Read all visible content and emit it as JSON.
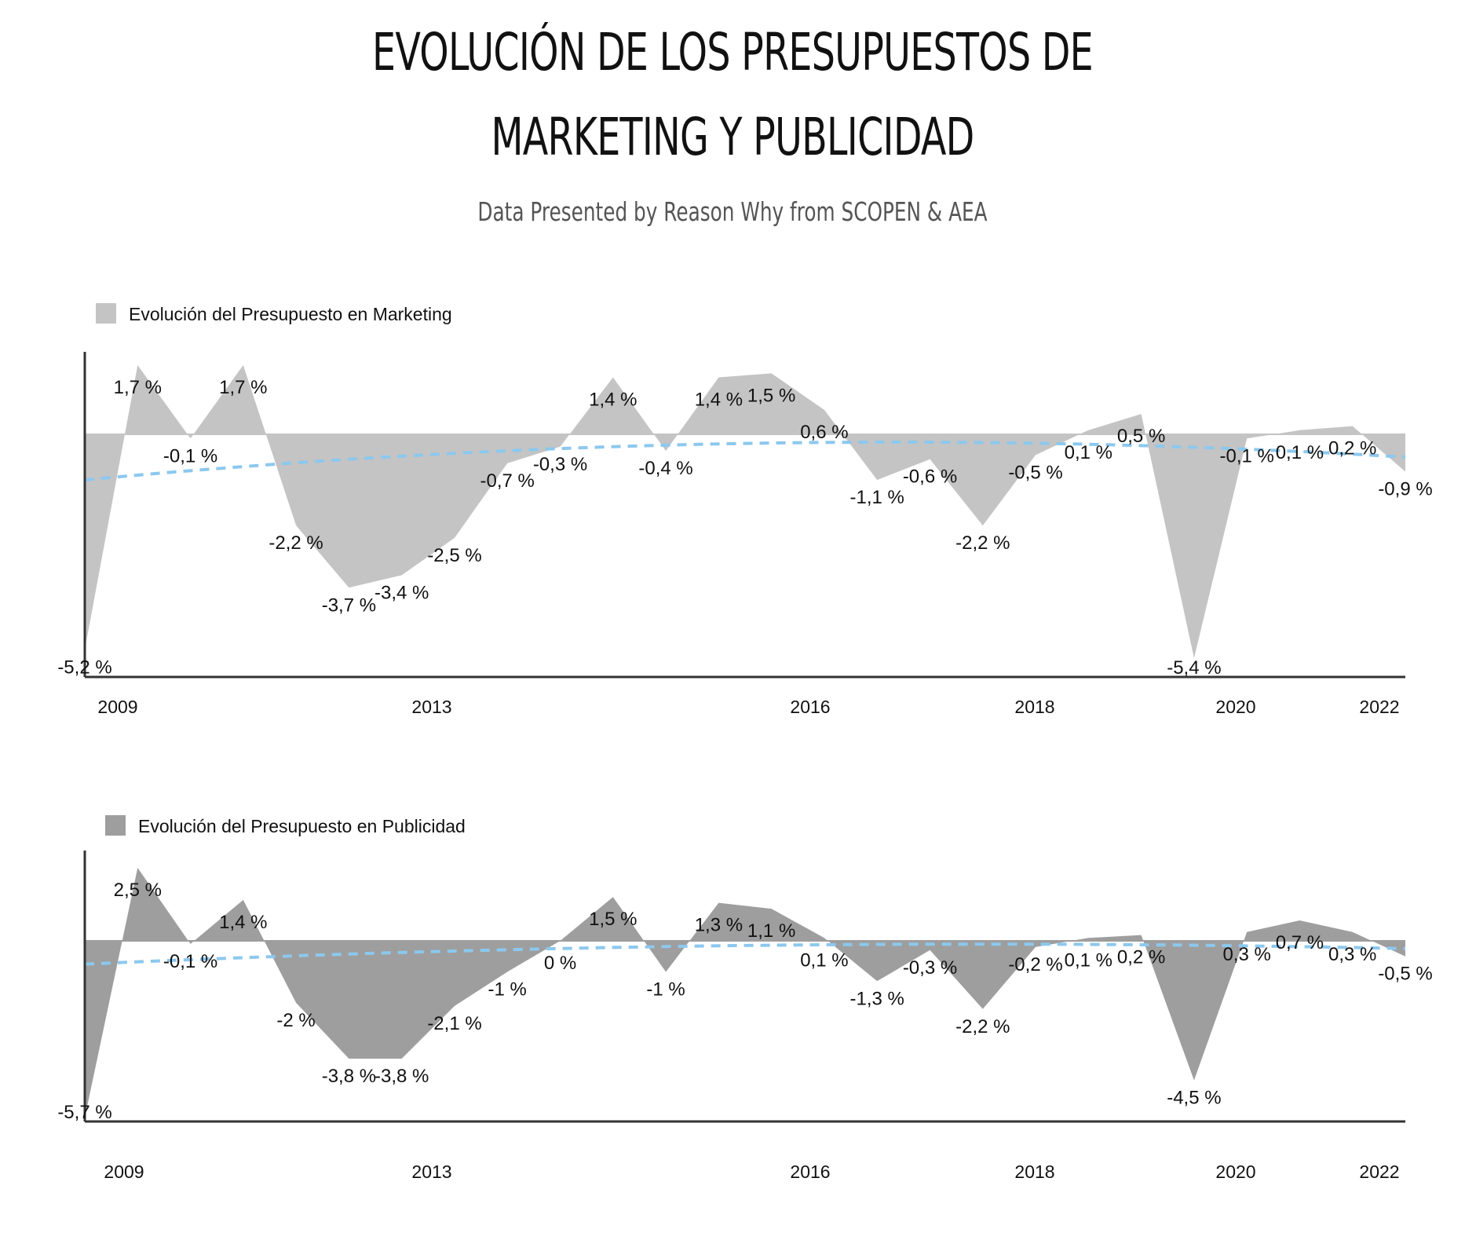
{
  "title_line1": "EVOLUCIÓN DE LOS PRESUPUESTOS DE",
  "title_line2": "MARKETING Y PUBLICIDAD",
  "subtitle": "Data Presented by Reason Why from SCOPEN & AEA",
  "colors": {
    "marketing_fill": "#c4c4c4",
    "publicidad_fill": "#9e9e9e",
    "trend": "#8cc8ee",
    "axis": "#333333"
  },
  "chart_data": [
    {
      "type": "area",
      "legend": "Evolución del Presupuesto en Marketing",
      "legend_placement": "top-left",
      "grid": false,
      "trendline": "dashed-polynomial",
      "ylim": [
        -5.4,
        1.7
      ],
      "x_ticks": [
        "2009",
        "2013",
        "2016",
        "2018",
        "2020",
        "2022"
      ],
      "values": [
        -5.2,
        1.7,
        -0.1,
        1.7,
        -2.2,
        -3.7,
        -3.4,
        -2.5,
        -0.7,
        -0.3,
        1.4,
        -0.4,
        1.4,
        1.5,
        0.6,
        -1.1,
        -0.6,
        -2.2,
        -0.5,
        0.1,
        0.5,
        -5.4,
        -0.1,
        0.1,
        0.2,
        -0.9
      ],
      "labels": [
        "-5,2 %",
        "1,7 %",
        "-0,1 %",
        "1,7 %",
        "-2,2 %",
        "-3,7 %",
        "-3,4 %",
        "-2,5 %",
        "-0,7 %",
        "-0,3 %",
        "1,4 %",
        "-0,4 %",
        "1,4 %",
        "1,5 %",
        "0,6 %",
        "-1,1 %",
        "-0,6 %",
        "-2,2 %",
        "-0,5 %",
        "0,1 %",
        "0,5 %",
        "-5,4 %",
        "-0,1 %",
        "0,1 %",
        "0,2 %",
        "-0,9 %"
      ]
    },
    {
      "type": "area",
      "legend": "Evolución del Presupuesto en Publicidad",
      "legend_placement": "top-left",
      "grid": false,
      "trendline": "dashed-polynomial",
      "ylim": [
        -5.7,
        2.5
      ],
      "x_ticks": [
        "2009",
        "2013",
        "2016",
        "2018",
        "2020",
        "2022"
      ],
      "values": [
        -5.7,
        2.5,
        -0.1,
        1.4,
        -2,
        -3.8,
        -3.8,
        -2.1,
        -1,
        0,
        1.5,
        -1,
        1.3,
        1.1,
        0.1,
        -1.3,
        -0.3,
        -2.2,
        -0.2,
        0.1,
        0.2,
        -4.5,
        0.3,
        0.7,
        0.3,
        -0.5
      ],
      "labels": [
        "-5,7 %",
        "2,5 %",
        "-0,1 %",
        "1,4 %",
        "-2 %",
        "-3,8 %",
        "-3,8 %",
        "-2,1 %",
        "-1 %",
        "0 %",
        "1,5 %",
        "-1 %",
        "1,3 %",
        "1,1 %",
        "0,1 %",
        "-1,3 %",
        "-0,3 %",
        "-2,2 %",
        "-0,2 %",
        "0,1 %",
        "0,2 %",
        "-4,5 %",
        "0,3 %",
        "0,7 %",
        "0,3 %",
        "-0,5 %"
      ]
    }
  ]
}
